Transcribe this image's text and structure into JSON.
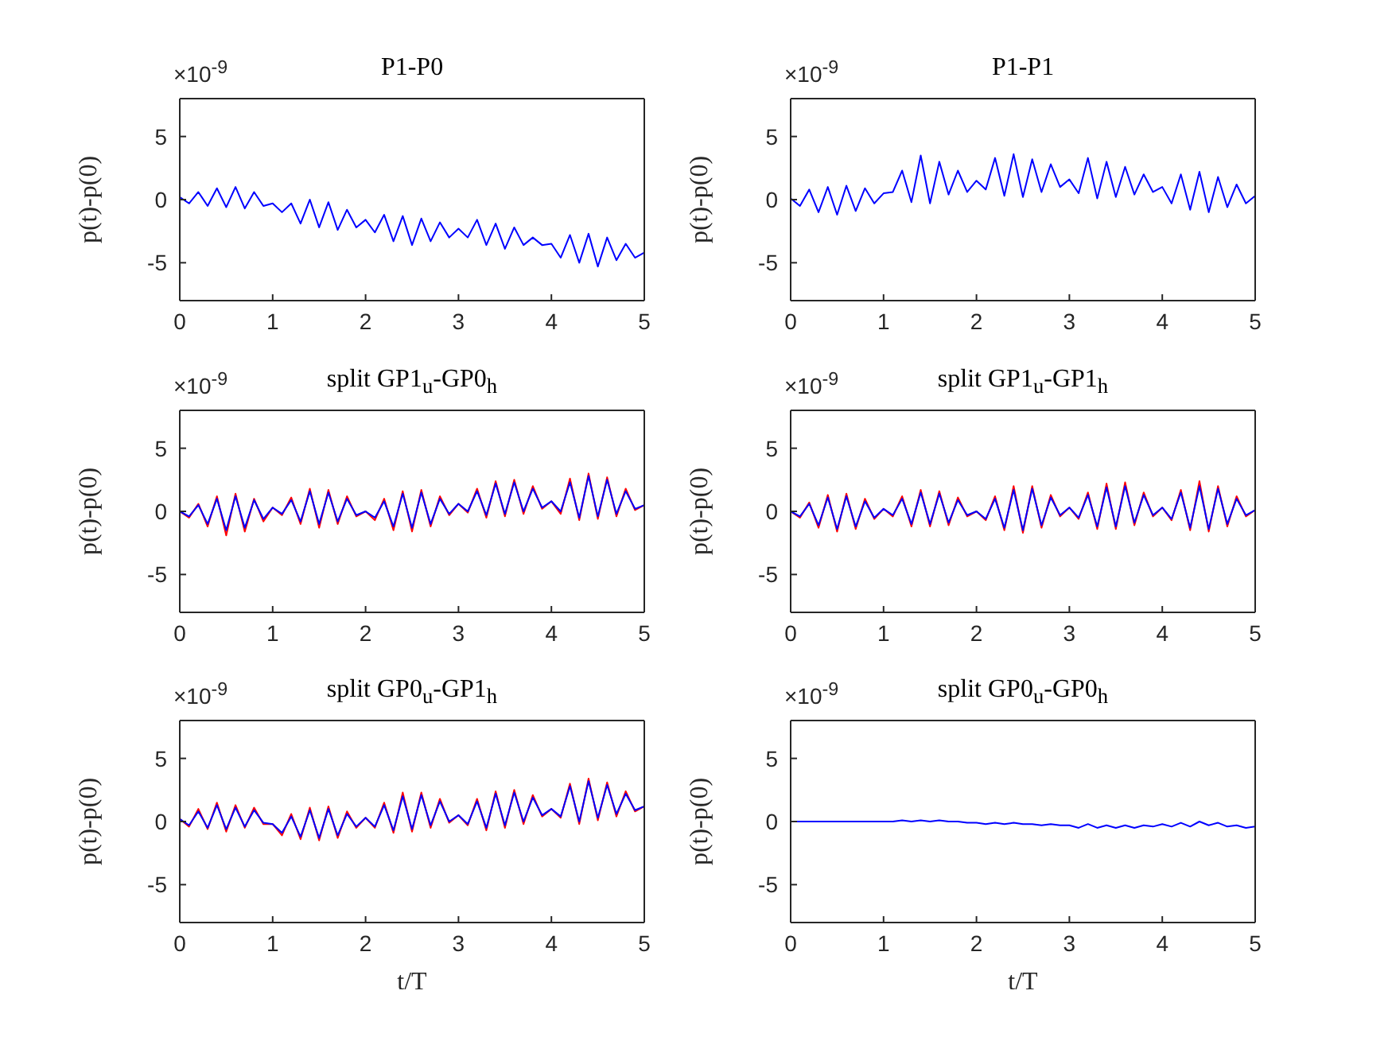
{
  "chart_data": [
    {
      "type": "line",
      "title": "P1-P0",
      "ylabel": "p(t)-p(0)",
      "annotations": [
        "×10$^{-9}$"
      ],
      "xlim": [
        0,
        5
      ],
      "xticks": [
        0,
        1,
        2,
        3,
        4,
        5
      ],
      "ylim": [
        -8,
        8
      ],
      "yticks": [
        -5,
        0,
        5
      ],
      "x": [
        0,
        0.1,
        0.2,
        0.3,
        0.4,
        0.5,
        0.6,
        0.7,
        0.8,
        0.9,
        1,
        1.1,
        1.2,
        1.3,
        1.4,
        1.5,
        1.6,
        1.7,
        1.8,
        1.9,
        2,
        2.1,
        2.2,
        2.3,
        2.4,
        2.5,
        2.6,
        2.7,
        2.8,
        2.9,
        3,
        3.1,
        3.2,
        3.3,
        3.4,
        3.5,
        3.6,
        3.7,
        3.8,
        3.9,
        4,
        4.1,
        4.2,
        4.3,
        4.4,
        4.5,
        4.6,
        4.7,
        4.8,
        4.9,
        5
      ],
      "series": [
        {
          "color": "#0000ff",
          "values": [
            0.2,
            -0.3,
            0.6,
            -0.5,
            0.9,
            -0.6,
            1.0,
            -0.7,
            0.6,
            -0.5,
            -0.3,
            -1.0,
            -0.3,
            -1.9,
            0.0,
            -2.2,
            -0.2,
            -2.4,
            -0.8,
            -2.2,
            -1.6,
            -2.6,
            -1.2,
            -3.3,
            -1.3,
            -3.6,
            -1.5,
            -3.3,
            -1.8,
            -3.0,
            -2.3,
            -3.0,
            -1.6,
            -3.6,
            -1.9,
            -3.9,
            -2.2,
            -3.6,
            -3.0,
            -3.6,
            -3.5,
            -4.6,
            -2.8,
            -5.0,
            -2.7,
            -5.3,
            -3.0,
            -4.8,
            -3.5,
            -4.6,
            -4.2
          ]
        }
      ]
    },
    {
      "type": "line",
      "title": "P1-P1",
      "ylabel": "p(t)-p(0)",
      "annotations": [
        "×10$^{-9}$"
      ],
      "xlim": [
        0,
        5
      ],
      "xticks": [
        0,
        1,
        2,
        3,
        4,
        5
      ],
      "ylim": [
        -8,
        8
      ],
      "yticks": [
        -5,
        0,
        5
      ],
      "x": [
        0,
        0.1,
        0.2,
        0.3,
        0.4,
        0.5,
        0.6,
        0.7,
        0.8,
        0.9,
        1,
        1.1,
        1.2,
        1.3,
        1.4,
        1.5,
        1.6,
        1.7,
        1.8,
        1.9,
        2,
        2.1,
        2.2,
        2.3,
        2.4,
        2.5,
        2.6,
        2.7,
        2.8,
        2.9,
        3,
        3.1,
        3.2,
        3.3,
        3.4,
        3.5,
        3.6,
        3.7,
        3.8,
        3.9,
        4,
        4.1,
        4.2,
        4.3,
        4.4,
        4.5,
        4.6,
        4.7,
        4.8,
        4.9,
        5
      ],
      "series": [
        {
          "color": "#0000ff",
          "values": [
            0.1,
            -0.5,
            0.8,
            -1.0,
            1.0,
            -1.2,
            1.1,
            -0.9,
            0.9,
            -0.3,
            0.5,
            0.6,
            2.3,
            -0.2,
            3.5,
            -0.3,
            3.0,
            0.4,
            2.3,
            0.6,
            1.5,
            0.8,
            3.3,
            0.3,
            3.6,
            0.2,
            3.2,
            0.6,
            2.8,
            1.0,
            1.6,
            0.5,
            3.3,
            0.1,
            3.0,
            0.2,
            2.6,
            0.4,
            2.0,
            0.6,
            1.0,
            -0.3,
            2.0,
            -0.8,
            2.2,
            -1.0,
            1.8,
            -0.6,
            1.2,
            -0.3,
            0.3
          ]
        }
      ]
    },
    {
      "type": "line",
      "title": "split GP1$_{u}$-GP0$_{h}$",
      "ylabel": "p(t)-p(0)",
      "annotations": [
        "×10$^{-9}$"
      ],
      "xlim": [
        0,
        5
      ],
      "xticks": [
        0,
        1,
        2,
        3,
        4,
        5
      ],
      "ylim": [
        -8,
        8
      ],
      "yticks": [
        -5,
        0,
        5
      ],
      "x": [
        0,
        0.1,
        0.2,
        0.3,
        0.4,
        0.5,
        0.6,
        0.7,
        0.8,
        0.9,
        1,
        1.1,
        1.2,
        1.3,
        1.4,
        1.5,
        1.6,
        1.7,
        1.8,
        1.9,
        2,
        2.1,
        2.2,
        2.3,
        2.4,
        2.5,
        2.6,
        2.7,
        2.8,
        2.9,
        3,
        3.1,
        3.2,
        3.3,
        3.4,
        3.5,
        3.6,
        3.7,
        3.8,
        3.9,
        4,
        4.1,
        4.2,
        4.3,
        4.4,
        4.5,
        4.6,
        4.7,
        4.8,
        4.9,
        5
      ],
      "series": [
        {
          "color": "#ff0000",
          "values": [
            0,
            -0.5,
            0.6,
            -1.2,
            1.2,
            -1.9,
            1.4,
            -1.6,
            1.0,
            -0.8,
            0.3,
            -0.3,
            1.1,
            -1.0,
            1.8,
            -1.3,
            1.7,
            -1.0,
            1.2,
            -0.4,
            0.0,
            -0.7,
            1.0,
            -1.5,
            1.6,
            -1.6,
            1.7,
            -1.2,
            1.2,
            -0.3,
            0.6,
            -0.1,
            1.8,
            -0.5,
            2.4,
            -0.4,
            2.5,
            -0.2,
            2.0,
            0.2,
            0.8,
            -0.2,
            2.6,
            -0.7,
            3.0,
            -0.6,
            2.7,
            -0.4,
            1.8,
            0.1,
            0.5
          ]
        },
        {
          "color": "#0000ff",
          "values": [
            0,
            -0.4,
            0.5,
            -1.0,
            1.0,
            -1.5,
            1.2,
            -1.3,
            0.9,
            -0.6,
            0.3,
            -0.2,
            0.9,
            -0.8,
            1.6,
            -1.0,
            1.5,
            -0.8,
            1.0,
            -0.3,
            0.0,
            -0.5,
            0.8,
            -1.2,
            1.4,
            -1.3,
            1.5,
            -1.0,
            1.0,
            -0.2,
            0.6,
            0.0,
            1.6,
            -0.3,
            2.2,
            -0.2,
            2.3,
            0.0,
            1.8,
            0.3,
            0.8,
            0.0,
            2.3,
            -0.5,
            2.8,
            -0.4,
            2.5,
            -0.2,
            1.6,
            0.2,
            0.5
          ]
        }
      ]
    },
    {
      "type": "line",
      "title": "split GP1$_{u}$-GP1$_{h}$",
      "ylabel": "p(t)-p(0)",
      "annotations": [
        "×10$^{-9}$"
      ],
      "xlim": [
        0,
        5
      ],
      "xticks": [
        0,
        1,
        2,
        3,
        4,
        5
      ],
      "ylim": [
        -8,
        8
      ],
      "yticks": [
        -5,
        0,
        5
      ],
      "x": [
        0,
        0.1,
        0.2,
        0.3,
        0.4,
        0.5,
        0.6,
        0.7,
        0.8,
        0.9,
        1,
        1.1,
        1.2,
        1.3,
        1.4,
        1.5,
        1.6,
        1.7,
        1.8,
        1.9,
        2,
        2.1,
        2.2,
        2.3,
        2.4,
        2.5,
        2.6,
        2.7,
        2.8,
        2.9,
        3,
        3.1,
        3.2,
        3.3,
        3.4,
        3.5,
        3.6,
        3.7,
        3.8,
        3.9,
        4,
        4.1,
        4.2,
        4.3,
        4.4,
        4.5,
        4.6,
        4.7,
        4.8,
        4.9,
        5
      ],
      "series": [
        {
          "color": "#ff0000",
          "values": [
            0,
            -0.5,
            0.7,
            -1.3,
            1.3,
            -1.6,
            1.4,
            -1.4,
            1.0,
            -0.6,
            0.2,
            -0.4,
            1.2,
            -1.2,
            1.7,
            -1.2,
            1.6,
            -1.1,
            1.1,
            -0.4,
            0.0,
            -0.7,
            1.2,
            -1.5,
            2.0,
            -1.7,
            2.0,
            -1.3,
            1.3,
            -0.4,
            0.3,
            -0.6,
            1.5,
            -1.4,
            2.2,
            -1.4,
            2.3,
            -1.1,
            1.5,
            -0.4,
            0.3,
            -0.7,
            1.7,
            -1.5,
            2.4,
            -1.6,
            2.0,
            -1.2,
            1.2,
            -0.4,
            0.1
          ]
        },
        {
          "color": "#0000ff",
          "values": [
            0,
            -0.4,
            0.6,
            -1.1,
            1.1,
            -1.4,
            1.2,
            -1.2,
            0.8,
            -0.5,
            0.2,
            -0.3,
            1.0,
            -1.0,
            1.5,
            -1.0,
            1.4,
            -0.9,
            0.9,
            -0.3,
            0.0,
            -0.6,
            1.0,
            -1.3,
            1.7,
            -1.5,
            1.8,
            -1.1,
            1.1,
            -0.3,
            0.3,
            -0.5,
            1.3,
            -1.2,
            1.9,
            -1.2,
            2.0,
            -0.9,
            1.3,
            -0.3,
            0.3,
            -0.6,
            1.5,
            -1.3,
            2.0,
            -1.4,
            1.8,
            -1.0,
            1.0,
            -0.3,
            0.1
          ]
        }
      ]
    },
    {
      "type": "line",
      "title": "split GP0$_{u}$-GP1$_{h}$",
      "xlabel": "t/T",
      "ylabel": "p(t)-p(0)",
      "annotations": [
        "×10$^{-9}$"
      ],
      "xlim": [
        0,
        5
      ],
      "xticks": [
        0,
        1,
        2,
        3,
        4,
        5
      ],
      "ylim": [
        -8,
        8
      ],
      "yticks": [
        -5,
        0,
        5
      ],
      "x": [
        0,
        0.1,
        0.2,
        0.3,
        0.4,
        0.5,
        0.6,
        0.7,
        0.8,
        0.9,
        1,
        1.1,
        1.2,
        1.3,
        1.4,
        1.5,
        1.6,
        1.7,
        1.8,
        1.9,
        2,
        2.1,
        2.2,
        2.3,
        2.4,
        2.5,
        2.6,
        2.7,
        2.8,
        2.9,
        3,
        3.1,
        3.2,
        3.3,
        3.4,
        3.5,
        3.6,
        3.7,
        3.8,
        3.9,
        4,
        4.1,
        4.2,
        4.3,
        4.4,
        4.5,
        4.6,
        4.7,
        4.8,
        4.9,
        5
      ],
      "series": [
        {
          "color": "#ff0000",
          "values": [
            0.2,
            -0.4,
            1.0,
            -0.6,
            1.5,
            -0.8,
            1.3,
            -0.5,
            1.1,
            -0.2,
            -0.2,
            -1.1,
            0.6,
            -1.4,
            1.1,
            -1.5,
            1.2,
            -1.3,
            0.8,
            -0.5,
            0.3,
            -0.5,
            1.5,
            -0.9,
            2.3,
            -0.8,
            2.3,
            -0.5,
            1.8,
            -0.1,
            0.5,
            -0.3,
            1.8,
            -0.7,
            2.4,
            -0.5,
            2.5,
            -0.2,
            2.1,
            0.4,
            1.0,
            0.3,
            3.0,
            -0.2,
            3.4,
            0.1,
            3.1,
            0.4,
            2.4,
            0.8,
            1.2
          ]
        },
        {
          "color": "#0000ff",
          "values": [
            0.2,
            -0.3,
            0.8,
            -0.5,
            1.3,
            -0.6,
            1.1,
            -0.4,
            0.9,
            -0.1,
            -0.2,
            -0.9,
            0.4,
            -1.2,
            0.9,
            -1.3,
            1.0,
            -1.1,
            0.6,
            -0.4,
            0.3,
            -0.4,
            1.3,
            -0.7,
            2.0,
            -0.6,
            2.1,
            -0.3,
            1.6,
            0.0,
            0.5,
            -0.2,
            1.6,
            -0.5,
            2.2,
            -0.3,
            2.3,
            0.0,
            1.9,
            0.5,
            1.0,
            0.4,
            2.8,
            0.0,
            3.2,
            0.3,
            2.9,
            0.6,
            2.2,
            0.9,
            1.2
          ]
        }
      ]
    },
    {
      "type": "line",
      "title": "split GP0$_{u}$-GP0$_{h}$",
      "xlabel": "t/T",
      "ylabel": "p(t)-p(0)",
      "annotations": [
        "×10$^{-9}$"
      ],
      "xlim": [
        0,
        5
      ],
      "xticks": [
        0,
        1,
        2,
        3,
        4,
        5
      ],
      "ylim": [
        -8,
        8
      ],
      "yticks": [
        -5,
        0,
        5
      ],
      "x": [
        0,
        0.1,
        0.2,
        0.3,
        0.4,
        0.5,
        0.6,
        0.7,
        0.8,
        0.9,
        1,
        1.1,
        1.2,
        1.3,
        1.4,
        1.5,
        1.6,
        1.7,
        1.8,
        1.9,
        2,
        2.1,
        2.2,
        2.3,
        2.4,
        2.5,
        2.6,
        2.7,
        2.8,
        2.9,
        3,
        3.1,
        3.2,
        3.3,
        3.4,
        3.5,
        3.6,
        3.7,
        3.8,
        3.9,
        4,
        4.1,
        4.2,
        4.3,
        4.4,
        4.5,
        4.6,
        4.7,
        4.8,
        4.9,
        5
      ],
      "series": [
        {
          "color": "#0000ff",
          "values": [
            0,
            0,
            0,
            0,
            0,
            0,
            0,
            0,
            0,
            0,
            0,
            0,
            0.1,
            0,
            0.1,
            0,
            0.1,
            0,
            0,
            -0.1,
            -0.1,
            -0.2,
            -0.1,
            -0.2,
            -0.1,
            -0.2,
            -0.2,
            -0.3,
            -0.2,
            -0.3,
            -0.3,
            -0.5,
            -0.2,
            -0.5,
            -0.3,
            -0.5,
            -0.3,
            -0.5,
            -0.3,
            -0.4,
            -0.2,
            -0.4,
            -0.1,
            -0.4,
            0.0,
            -0.3,
            -0.1,
            -0.4,
            -0.3,
            -0.5,
            -0.4
          ]
        }
      ]
    }
  ]
}
